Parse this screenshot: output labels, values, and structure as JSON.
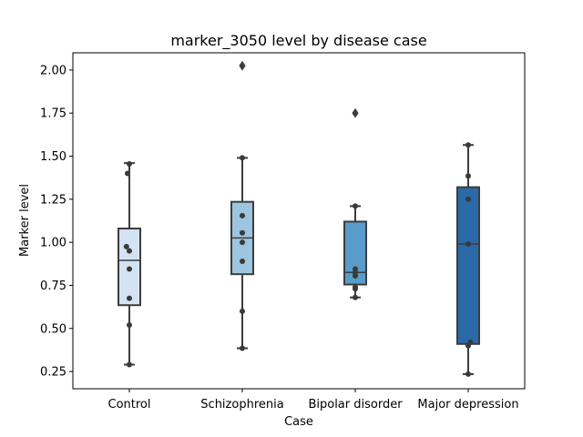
{
  "chart_data": {
    "type": "box",
    "title": "marker_3050 level by disease case",
    "xlabel": "Case",
    "ylabel": "Marker level",
    "ylim": [
      0.15,
      2.1
    ],
    "yticks": [
      0.25,
      0.5,
      0.75,
      1.0,
      1.25,
      1.5,
      1.75,
      2.0
    ],
    "ytick_labels": [
      "0.25",
      "0.50",
      "0.75",
      "1.00",
      "1.25",
      "1.50",
      "1.75",
      "2.00"
    ],
    "categories": [
      "Control",
      "Schizophrenia",
      "Bipolar disorder",
      "Major depression"
    ],
    "grid": false,
    "boxes": [
      {
        "category": "Control",
        "whisker_low": 0.29,
        "q1": 0.635,
        "median": 0.895,
        "q3": 1.08,
        "whisker_high": 1.46,
        "outliers": [],
        "color": "#d4e3f3"
      },
      {
        "category": "Schizophrenia",
        "whisker_low": 0.385,
        "q1": 0.815,
        "median": 1.025,
        "q3": 1.235,
        "whisker_high": 1.49,
        "outliers": [
          2.025
        ],
        "color": "#9dc5e0"
      },
      {
        "category": "Bipolar disorder",
        "whisker_low": 0.68,
        "q1": 0.755,
        "median": 0.825,
        "q3": 1.12,
        "whisker_high": 1.21,
        "outliers": [
          1.75
        ],
        "color": "#5a9cc9"
      },
      {
        "category": "Major depression",
        "whisker_low": 0.235,
        "q1": 0.41,
        "median": 0.99,
        "q3": 1.32,
        "whisker_high": 1.565,
        "outliers": [],
        "color": "#2a6aa9"
      }
    ],
    "points": [
      {
        "category": "Control",
        "values": [
          1.455,
          1.4,
          0.975,
          0.95,
          0.845,
          0.675,
          0.52,
          0.29
        ],
        "offsets": [
          0,
          -0.5,
          -0.8,
          0,
          0,
          0,
          0,
          0
        ]
      },
      {
        "category": "Schizophrenia",
        "values": [
          1.49,
          1.155,
          1.055,
          1.0,
          0.89,
          0.6,
          0.385
        ],
        "offsets": [
          0,
          0,
          0,
          0,
          0,
          0,
          0
        ]
      },
      {
        "category": "Bipolar disorder",
        "values": [
          1.21,
          0.845,
          0.825,
          0.805,
          0.74,
          0.73,
          0.68
        ],
        "offsets": [
          0,
          0,
          0,
          0,
          0,
          0,
          0
        ]
      },
      {
        "category": "Major depression",
        "values": [
          1.565,
          1.385,
          1.25,
          0.99,
          0.42,
          0.4,
          0.235
        ],
        "offsets": [
          0,
          0,
          0,
          0,
          0.6,
          0,
          0
        ]
      }
    ]
  }
}
